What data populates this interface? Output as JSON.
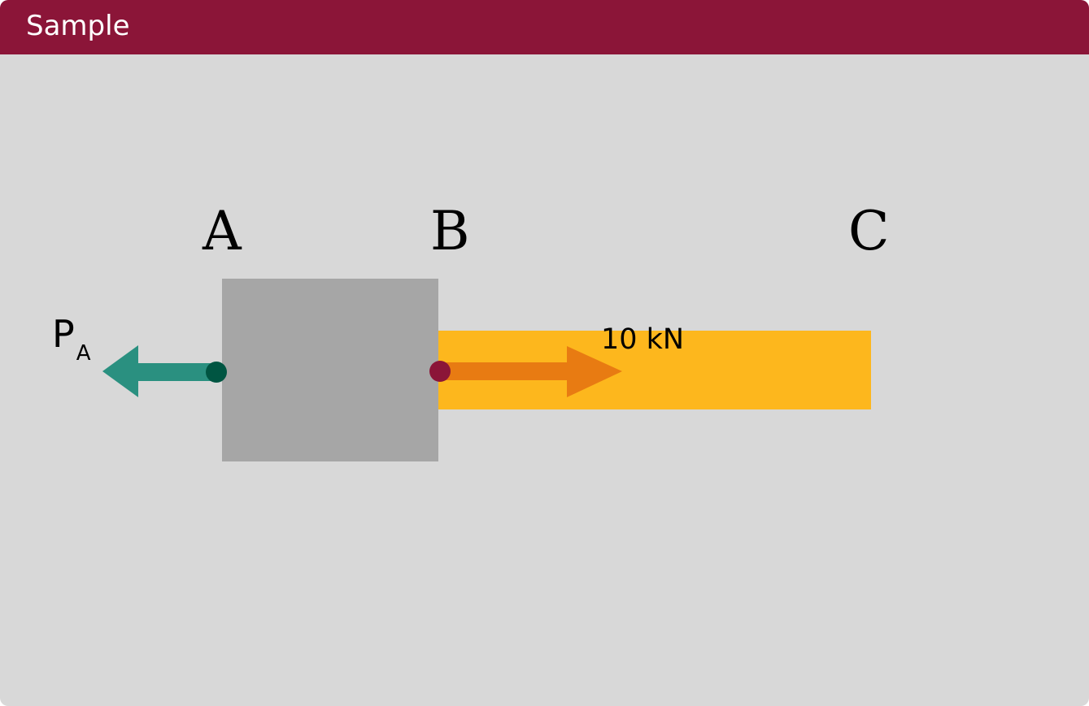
{
  "header": {
    "title": "Sample"
  },
  "diagram": {
    "points": {
      "a": "A",
      "b": "B",
      "c": "C"
    },
    "reaction": {
      "symbol": "P",
      "subscript": "A"
    },
    "applied_force": "10 kN"
  },
  "colors": {
    "header": "#8b1538",
    "panel": "#d8d8d8",
    "block": "#a6a6a6",
    "rod": "#fdb71d",
    "reaction_arrow": "#2a9080",
    "reaction_node": "#005542",
    "applied_arrow": "#e87b12",
    "applied_node": "#8b1538"
  }
}
